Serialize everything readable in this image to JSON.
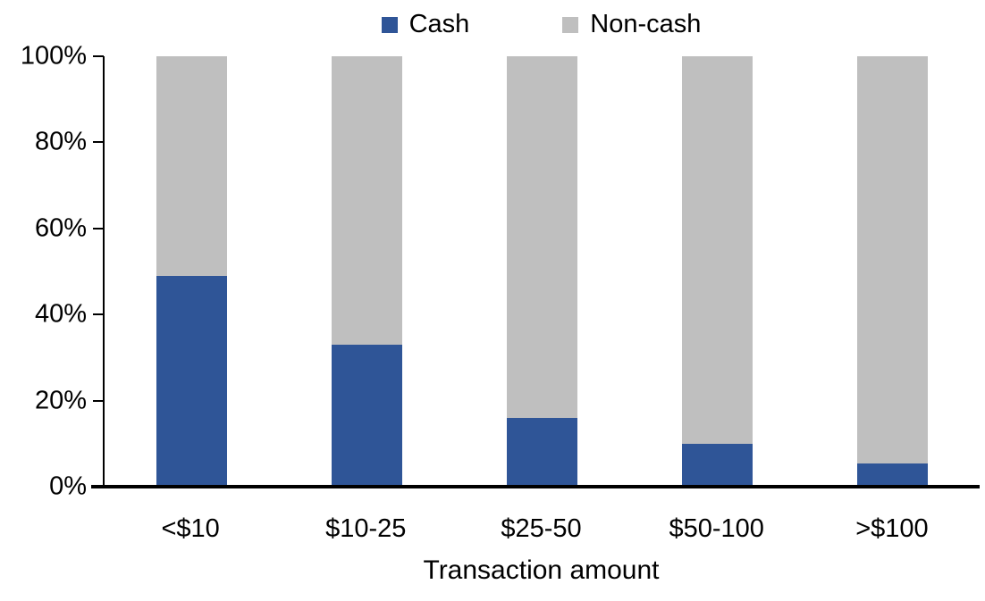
{
  "chart_data": {
    "type": "bar",
    "stacked": true,
    "percent_stacked": true,
    "title": "",
    "xlabel": "Transaction amount",
    "ylabel": "",
    "categories": [
      "<$10",
      "$10-25",
      "$25-50",
      "$50-100",
      ">$100"
    ],
    "series": [
      {
        "name": "Cash",
        "color": "#2F5597",
        "values": [
          49,
          33,
          16,
          10,
          5.5
        ]
      },
      {
        "name": "Non-cash",
        "color": "#BFBFBF",
        "values": [
          51,
          67,
          84,
          90,
          94.5
        ]
      }
    ],
    "ylim": [
      0,
      100
    ],
    "yticks": [
      "0%",
      "20%",
      "40%",
      "60%",
      "80%",
      "100%"
    ],
    "grid": false,
    "legend_position": "top",
    "axis_color": "#000000",
    "text_color": "#000000",
    "background_color": "#FFFFFF"
  }
}
